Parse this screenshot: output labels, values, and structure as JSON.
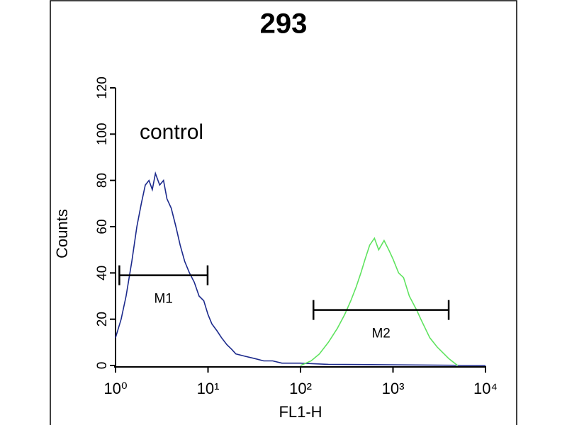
{
  "chart_data": {
    "type": "line",
    "title": "293",
    "annotation": "control",
    "xlabel": "FL1-H",
    "ylabel": "Counts",
    "log_x": true,
    "xlim": [
      1,
      10000
    ],
    "xticks": [
      {
        "value": 1,
        "label": "10⁰"
      },
      {
        "value": 10,
        "label": "10¹"
      },
      {
        "value": 100,
        "label": "10²"
      },
      {
        "value": 1000,
        "label": "10³"
      },
      {
        "value": 10000,
        "label": "10⁴"
      }
    ],
    "ylim": [
      0,
      120
    ],
    "yticks": [
      0,
      20,
      40,
      60,
      80,
      100,
      120
    ],
    "series": [
      {
        "color": "#1c2a8c",
        "x": [
          1.0,
          1.15,
          1.3,
          1.5,
          1.7,
          1.9,
          2.1,
          2.3,
          2.5,
          2.7,
          3.0,
          3.3,
          3.6,
          4.0,
          4.5,
          5.0,
          5.6,
          6.3,
          7.1,
          8,
          9,
          10,
          11,
          12.5,
          14,
          16,
          18,
          20,
          25,
          32,
          40,
          50,
          63,
          80,
          100,
          200,
          1000,
          10000
        ],
        "values": [
          12,
          20,
          30,
          45,
          60,
          70,
          78,
          80,
          76,
          83,
          78,
          80,
          72,
          68,
          60,
          52,
          45,
          40,
          36,
          30,
          28,
          22,
          18,
          15,
          12,
          9,
          7,
          5,
          4,
          3,
          2,
          2,
          1,
          1,
          1,
          0.5,
          0.3,
          0
        ]
      },
      {
        "color": "#5fe35f",
        "x": [
          100,
          130,
          160,
          200,
          250,
          300,
          350,
          400,
          450,
          500,
          560,
          630,
          700,
          800,
          900,
          1000,
          1150,
          1300,
          1500,
          1800,
          2000,
          2500,
          3000,
          4000,
          5000
        ],
        "values": [
          0,
          2,
          5,
          10,
          16,
          22,
          28,
          34,
          40,
          46,
          52,
          55,
          50,
          54,
          50,
          46,
          40,
          38,
          30,
          24,
          20,
          12,
          8,
          3,
          0
        ]
      }
    ],
    "markers": [
      {
        "label": "M1",
        "x": [
          1.1,
          9.9
        ],
        "y": 39
      },
      {
        "label": "M2",
        "x": [
          138,
          4000
        ],
        "y": 24
      }
    ]
  }
}
